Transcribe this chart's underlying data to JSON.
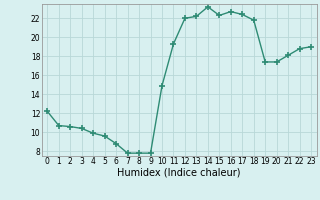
{
  "x": [
    0,
    1,
    2,
    3,
    4,
    5,
    6,
    7,
    8,
    9,
    10,
    11,
    12,
    13,
    14,
    15,
    16,
    17,
    18,
    19,
    20,
    21,
    22,
    23
  ],
  "y": [
    12.2,
    10.7,
    10.6,
    10.4,
    9.9,
    9.6,
    8.8,
    7.8,
    7.8,
    7.8,
    14.9,
    19.3,
    22.0,
    22.2,
    23.2,
    22.3,
    22.7,
    22.4,
    21.8,
    17.4,
    17.4,
    18.1,
    18.8,
    19.0
  ],
  "line_color": "#2e8b74",
  "marker": "+",
  "marker_size": 4,
  "marker_lw": 1.2,
  "bg_color": "#d8f0f0",
  "grid_color": "#b8d8d8",
  "xlabel": "Humidex (Indice chaleur)",
  "ylim": [
    7.5,
    23.5
  ],
  "xlim": [
    -0.5,
    23.5
  ],
  "yticks": [
    8,
    10,
    12,
    14,
    16,
    18,
    20,
    22
  ],
  "xticks": [
    0,
    1,
    2,
    3,
    4,
    5,
    6,
    7,
    8,
    9,
    10,
    11,
    12,
    13,
    14,
    15,
    16,
    17,
    18,
    19,
    20,
    21,
    22,
    23
  ],
  "tick_fontsize": 5.5,
  "xlabel_fontsize": 7.0,
  "line_width": 1.0
}
